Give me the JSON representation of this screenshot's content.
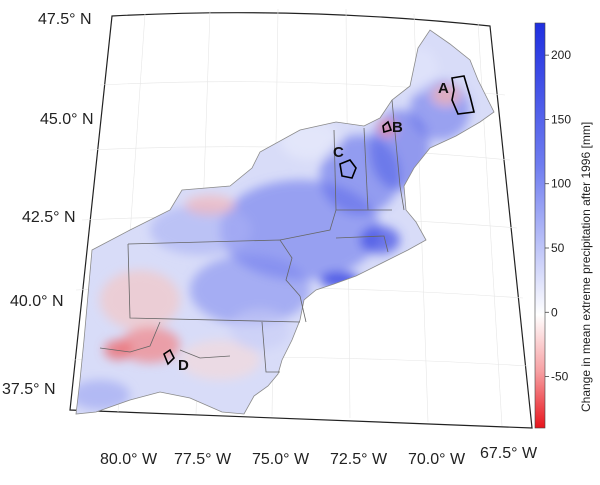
{
  "map": {
    "lat_labels": [
      "47.5° N",
      "45.0° N",
      "42.5° N",
      "40.0° N",
      "37.5° N"
    ],
    "lon_labels": [
      "80.0° W",
      "77.5° W",
      "75.0° W",
      "72.5° W",
      "70.0° W",
      "67.5° W"
    ],
    "regions": [
      {
        "id": "A",
        "label": "A"
      },
      {
        "id": "B",
        "label": "B"
      },
      {
        "id": "C",
        "label": "C"
      },
      {
        "id": "D",
        "label": "D"
      }
    ],
    "colors": {
      "positive": "#1f2fe0",
      "negative": "#e8141c",
      "neutral": "#ffffff",
      "boundary": "#555555",
      "frame": "#222222"
    }
  },
  "colorbar": {
    "label": "Change in mean extreme precipitation after 1996 [mm]",
    "ticks": [
      "200",
      "150",
      "100",
      "50",
      "0",
      "-50"
    ],
    "min": -90,
    "max": 225
  }
}
